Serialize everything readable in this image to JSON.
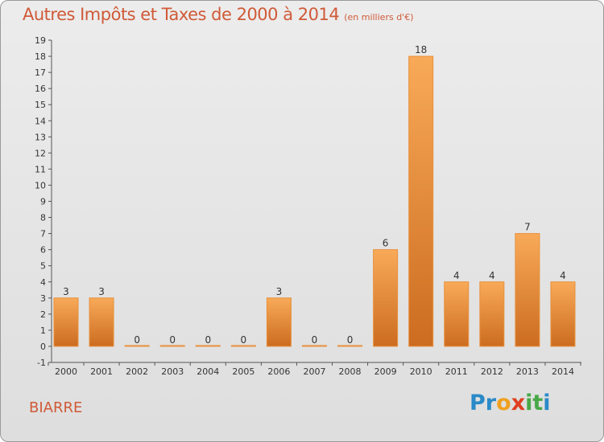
{
  "title": "Autres Impôts et Taxes de 2000 à 2014",
  "unit_note": "(en milliers d'€)",
  "location": "BIARRE",
  "logo": {
    "text": "Proxiti",
    "letters": [
      {
        "ch": "P",
        "color": "#2a8ac8"
      },
      {
        "ch": "r",
        "color": "#2a8ac8"
      },
      {
        "ch": "o",
        "color": "#f0a020"
      },
      {
        "ch": "x",
        "color": "#e04020"
      },
      {
        "ch": "i",
        "color": "#48a848"
      },
      {
        "ch": "t",
        "color": "#48a848"
      },
      {
        "ch": "i",
        "color": "#2a8ac8"
      }
    ]
  },
  "chart_data": {
    "type": "bar",
    "title": "Autres Impôts et Taxes de 2000 à 2014",
    "subtitle": "(en milliers d'€)",
    "categories": [
      "2000",
      "2001",
      "2002",
      "2003",
      "2004",
      "2005",
      "2006",
      "2007",
      "2008",
      "2009",
      "2010",
      "2011",
      "2012",
      "2013",
      "2014"
    ],
    "values": [
      3,
      3,
      0,
      0,
      0,
      0,
      3,
      0,
      0,
      6,
      18,
      4,
      4,
      7,
      4
    ],
    "ylim": [
      -1,
      19
    ],
    "yticks": [
      -1,
      0,
      1,
      2,
      3,
      4,
      5,
      6,
      7,
      8,
      9,
      10,
      11,
      12,
      13,
      14,
      15,
      16,
      17,
      18,
      19
    ],
    "grid": false,
    "legend": "none",
    "colors": {
      "bar_light": "#f8aa58",
      "bar_dark": "#cc6c20",
      "bar_edge": "#e8903a",
      "axis": "#555555",
      "text": "#333333"
    }
  }
}
